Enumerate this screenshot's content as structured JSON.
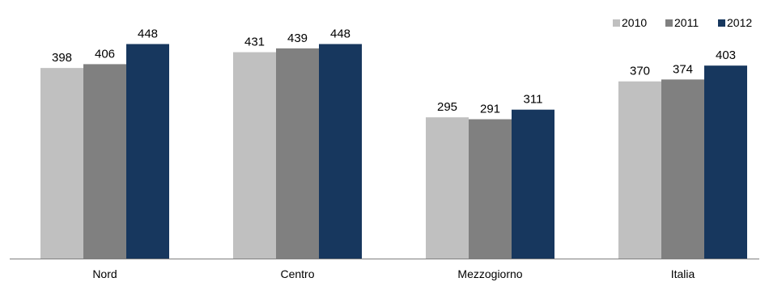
{
  "chart_data": {
    "type": "bar",
    "categories": [
      "Nord",
      "Centro",
      "Mezzogiorno",
      "Italia"
    ],
    "series": [
      {
        "name": "2010",
        "values": [
          398,
          431,
          295,
          370
        ],
        "color": "#c0c0c0"
      },
      {
        "name": "2011",
        "values": [
          406,
          439,
          291,
          374
        ],
        "color": "#808080"
      },
      {
        "name": "2012",
        "values": [
          448,
          448,
          311,
          403
        ],
        "color": "#17375e"
      }
    ],
    "title": "",
    "xlabel": "",
    "ylabel": "",
    "ylim": [
      0,
      540
    ],
    "grid": false,
    "legend": "top-right",
    "axis_color": "#7f7f7f"
  }
}
